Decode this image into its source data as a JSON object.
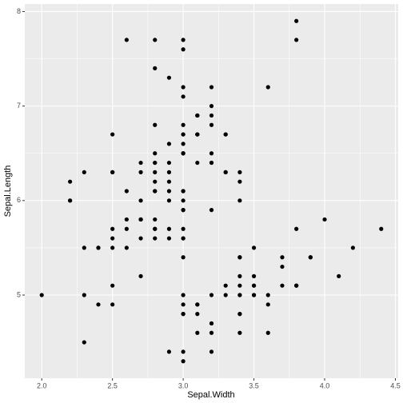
{
  "chart_data": {
    "type": "scatter",
    "x_label": "Sepal.Width",
    "y_label": "Sepal.Length",
    "x": [
      3.5,
      3.0,
      3.2,
      3.1,
      3.6,
      3.9,
      3.4,
      3.4,
      2.9,
      3.1,
      3.7,
      3.4,
      3.0,
      3.0,
      4.0,
      4.4,
      3.9,
      3.5,
      3.8,
      3.8,
      3.4,
      3.7,
      3.6,
      3.3,
      3.4,
      3.0,
      3.4,
      3.5,
      3.4,
      3.2,
      3.1,
      3.4,
      4.1,
      4.2,
      3.1,
      3.2,
      3.5,
      3.6,
      3.0,
      3.4,
      3.5,
      2.3,
      3.2,
      3.5,
      3.8,
      3.0,
      3.8,
      3.2,
      3.7,
      3.3,
      3.2,
      3.2,
      3.1,
      2.3,
      2.8,
      2.8,
      3.3,
      2.4,
      2.9,
      2.7,
      2.0,
      3.0,
      2.2,
      2.9,
      2.9,
      3.1,
      3.0,
      2.7,
      2.2,
      2.5,
      3.2,
      2.8,
      2.5,
      2.8,
      2.9,
      3.0,
      2.8,
      3.0,
      2.9,
      2.6,
      2.4,
      2.4,
      2.7,
      2.7,
      3.0,
      3.4,
      3.1,
      2.3,
      3.0,
      2.5,
      2.6,
      3.0,
      2.6,
      2.3,
      2.7,
      3.0,
      2.9,
      2.9,
      2.5,
      2.8,
      3.3,
      2.7,
      3.0,
      2.9,
      3.0,
      3.0,
      2.5,
      2.9,
      2.5,
      3.6,
      3.2,
      2.7,
      3.0,
      2.5,
      2.8,
      3.2,
      3.0,
      3.8,
      2.6,
      2.2,
      3.2,
      2.8,
      2.8,
      2.7,
      3.3,
      3.2,
      2.8,
      3.0,
      2.8,
      3.0,
      2.8,
      3.8,
      2.8,
      2.8,
      2.6,
      3.0,
      3.4,
      3.1,
      3.0,
      3.1,
      3.1,
      3.1,
      2.7,
      3.2,
      3.3,
      3.0,
      2.5,
      3.0,
      3.4,
      3.0
    ],
    "values": [
      5.1,
      4.9,
      4.7,
      4.6,
      5.0,
      5.4,
      4.6,
      5.0,
      4.4,
      4.9,
      5.4,
      4.8,
      4.8,
      4.3,
      5.8,
      5.7,
      5.4,
      5.1,
      5.7,
      5.1,
      5.4,
      5.1,
      4.6,
      5.1,
      4.8,
      5.0,
      5.0,
      5.2,
      5.2,
      4.7,
      4.8,
      5.4,
      5.2,
      5.5,
      4.9,
      5.0,
      5.5,
      4.9,
      4.4,
      5.1,
      5.0,
      4.5,
      4.4,
      5.0,
      5.1,
      4.8,
      5.1,
      4.6,
      5.3,
      5.0,
      7.0,
      6.4,
      6.9,
      5.5,
      6.5,
      5.7,
      6.3,
      4.9,
      6.6,
      5.2,
      5.0,
      5.9,
      6.0,
      6.1,
      5.6,
      6.7,
      5.6,
      5.8,
      6.2,
      5.6,
      5.9,
      6.1,
      6.3,
      6.1,
      6.4,
      6.6,
      6.8,
      6.7,
      6.0,
      5.7,
      5.5,
      5.5,
      5.8,
      6.0,
      5.4,
      6.0,
      6.7,
      6.3,
      5.6,
      5.5,
      5.5,
      6.1,
      5.8,
      5.0,
      5.6,
      5.7,
      5.7,
      6.2,
      5.1,
      5.7,
      6.3,
      5.8,
      7.1,
      6.3,
      6.5,
      7.6,
      4.9,
      7.3,
      6.7,
      7.2,
      6.5,
      6.4,
      6.8,
      5.7,
      5.8,
      6.4,
      6.5,
      7.7,
      7.7,
      6.0,
      6.9,
      5.6,
      7.7,
      6.3,
      6.7,
      7.2,
      6.2,
      6.1,
      6.4,
      7.2,
      7.4,
      7.9,
      6.4,
      6.3,
      6.1,
      7.7,
      6.3,
      6.4,
      6.0,
      6.9,
      6.7,
      6.9,
      5.8,
      6.8,
      6.7,
      6.7,
      6.3,
      6.5,
      6.2,
      5.9
    ],
    "color": "#000000",
    "xlim": [
      1.88,
      4.52
    ],
    "xticks": [
      {
        "value": 2,
        "label": "2.0"
      },
      2.5,
      {
        "value": 3,
        "label": "3.0"
      },
      3.5,
      {
        "value": 4,
        "label": "4.0"
      },
      4.5
    ],
    "ylim": [
      4.12,
      8.08
    ],
    "yticks": [
      5,
      6,
      7,
      8
    ],
    "grid": true
  }
}
